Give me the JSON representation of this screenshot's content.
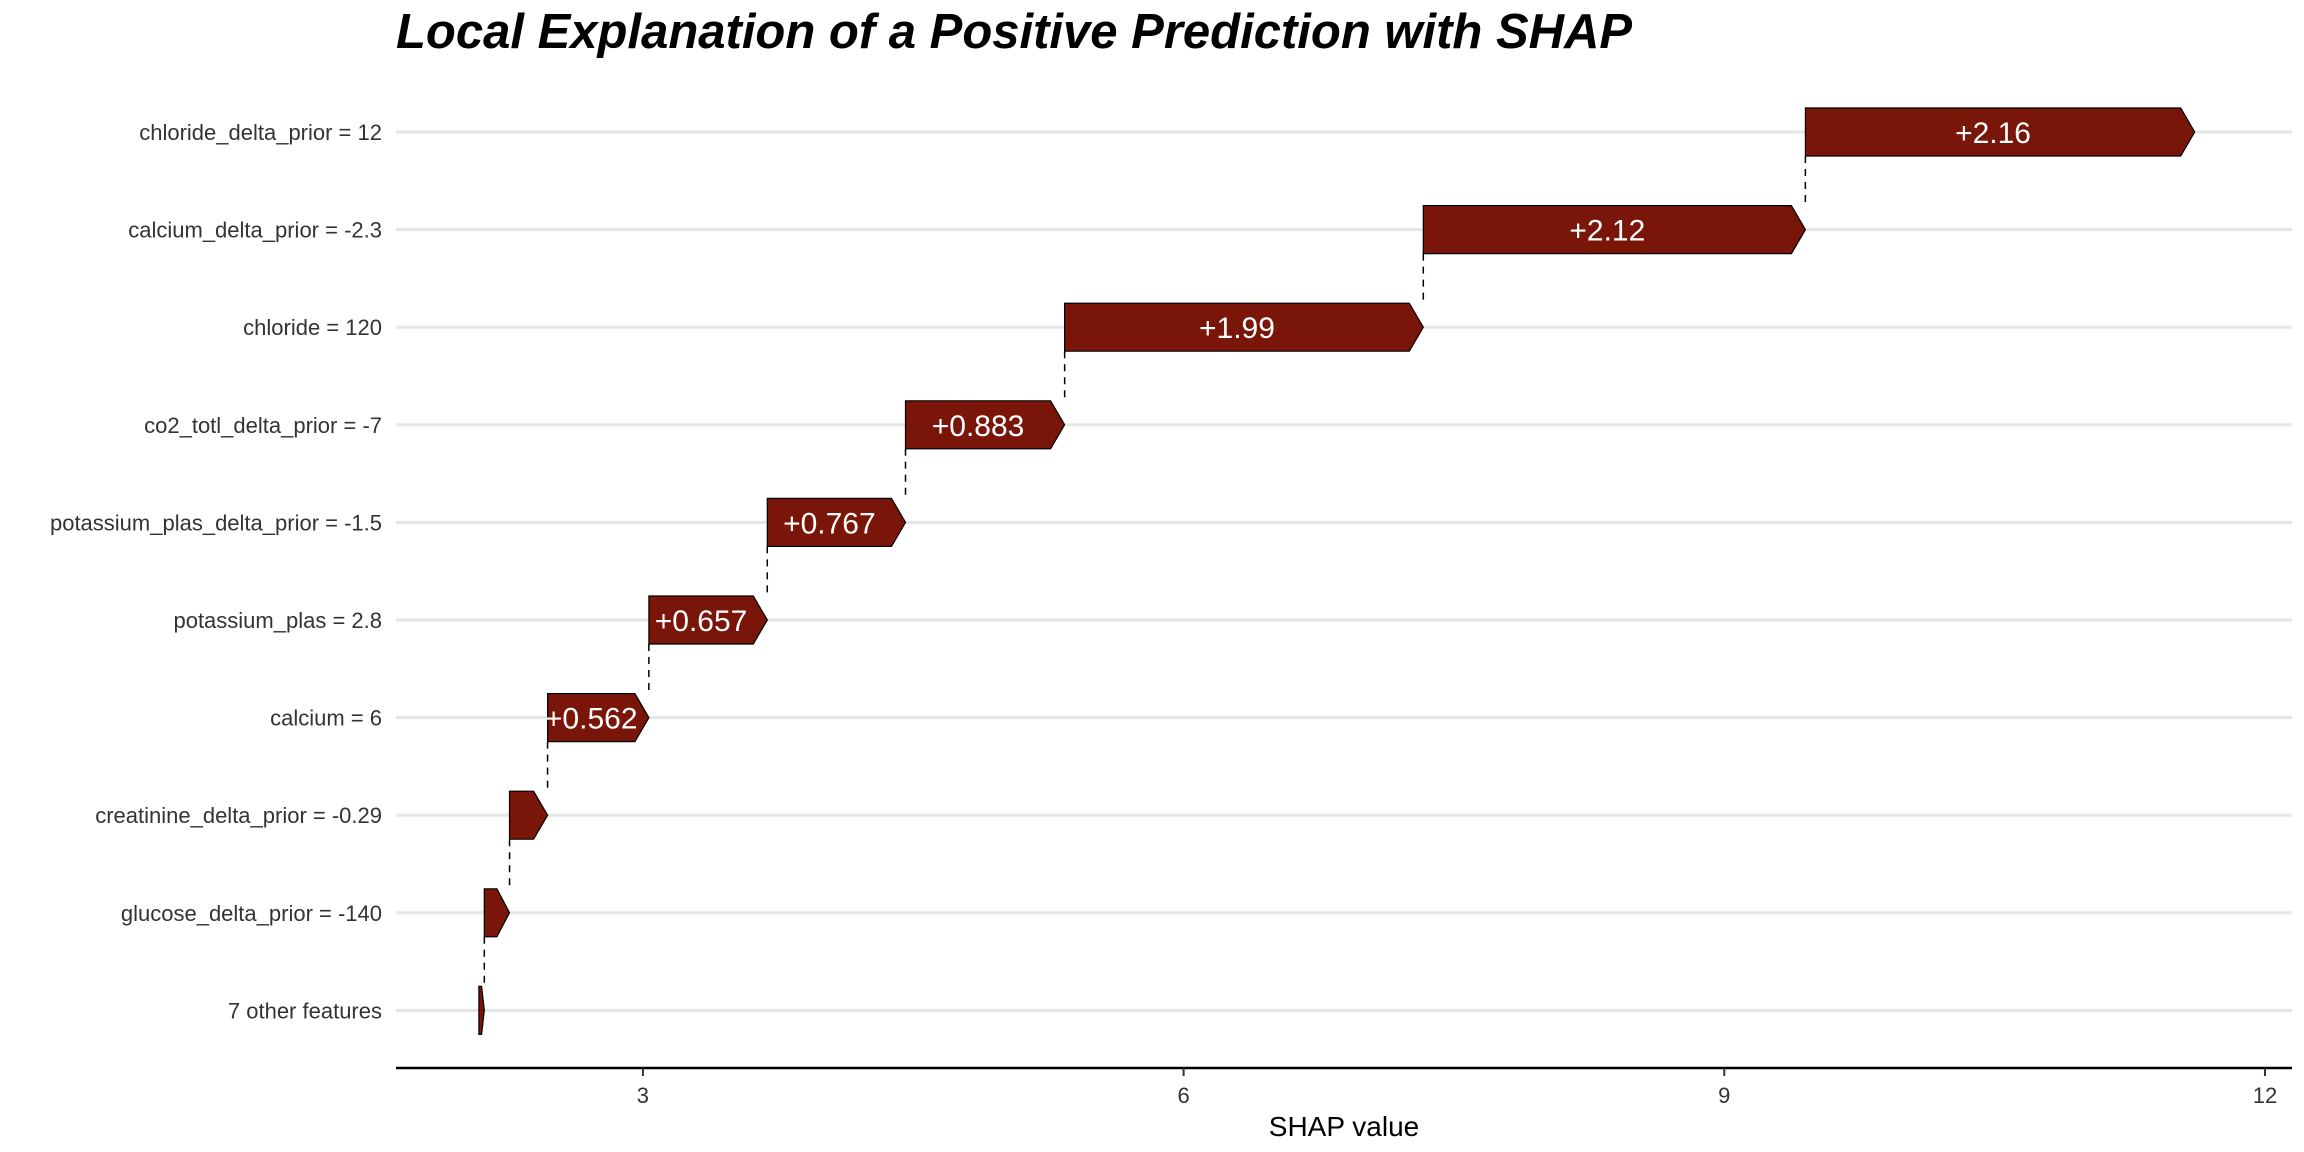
{
  "chart_data": {
    "type": "waterfall",
    "title": "Local Explanation of a Positive Prediction with SHAP",
    "xlabel": "SHAP value",
    "xlim": [
      1.63,
      12.15
    ],
    "xticks": [
      3,
      6,
      9,
      12
    ],
    "bar_color": "#7a1509",
    "grid": true,
    "features": [
      {
        "label": "chloride_delta_prior = 12",
        "start": 9.45,
        "value": 2.16,
        "text": "+2.16"
      },
      {
        "label": "calcium_delta_prior = -2.3",
        "start": 7.33,
        "value": 2.12,
        "text": "+2.12"
      },
      {
        "label": "chloride = 120",
        "start": 5.34,
        "value": 1.99,
        "text": "+1.99"
      },
      {
        "label": "co2_totl_delta_prior = -7",
        "start": 4.457,
        "value": 0.883,
        "text": "+0.883"
      },
      {
        "label": "potassium_plas_delta_prior = -1.5",
        "start": 3.69,
        "value": 0.767,
        "text": "+0.767"
      },
      {
        "label": "potassium_plas = 2.8",
        "start": 3.033,
        "value": 0.657,
        "text": "+0.657"
      },
      {
        "label": "calcium = 6",
        "start": 2.471,
        "value": 0.562,
        "text": "+0.562"
      },
      {
        "label": "creatinine_delta_prior = -0.29",
        "start": 2.26,
        "value": 0.211,
        "text": ""
      },
      {
        "label": "glucose_delta_prior = -140",
        "start": 2.12,
        "value": 0.14,
        "text": ""
      },
      {
        "label": "7 other features",
        "start": 2.09,
        "value": 0.03,
        "text": ""
      }
    ]
  }
}
